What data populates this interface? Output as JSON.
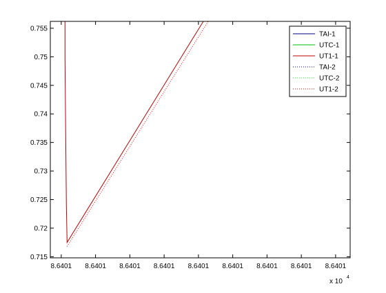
{
  "chart_data": {
    "type": "line",
    "title": "",
    "xlabel": "",
    "ylabel": "",
    "x_exponent_label": "x 10",
    "x_exponent_power": "4",
    "xlim": [
      0,
      1
    ],
    "ylim": [
      0.7148,
      0.7562
    ],
    "x_tick_positions": [
      0.0364,
      0.1508,
      0.2652,
      0.3796,
      0.494,
      0.6084,
      0.7227,
      0.8371,
      0.9515
    ],
    "x_tick_labels": [
      "8.6401",
      "8.6401",
      "8.6401",
      "8.6401",
      "8.6401",
      "8.6401",
      "8.6401",
      "8.6401",
      "8.6401"
    ],
    "y_ticks": [
      0.715,
      0.72,
      0.725,
      0.73,
      0.735,
      0.74,
      0.745,
      0.75,
      0.755
    ],
    "y_tick_labels": [
      "0.715",
      "0.72",
      "0.725",
      "0.73",
      "0.735",
      "0.74",
      "0.745",
      "0.75",
      "0.755"
    ],
    "grid": false,
    "legend_position": "top-right",
    "series": [
      {
        "name": "TAI-1",
        "color": "#00007f",
        "style": "solid",
        "x": [
          0.0489,
          0.0489
        ],
        "y": [
          0.7562,
          0.7562
        ]
      },
      {
        "name": "UTC-1",
        "color": "#00bf00",
        "style": "solid",
        "x": [
          0.0489,
          0.0489
        ],
        "y": [
          0.7562,
          0.7562
        ]
      },
      {
        "name": "UT1-1",
        "color": "#bf0000",
        "style": "solid",
        "x": [
          0.0489,
          0.0489,
          0.0489,
          0.0512,
          0.0512,
          0.0536,
          0.0536,
          0.0559,
          0.5103
        ],
        "y": [
          0.7562,
          0.7498,
          0.7498,
          0.737,
          0.737,
          0.7238,
          0.7238,
          0.7175,
          0.7562
        ]
      },
      {
        "name": "TAI-2",
        "color": "#0000ff",
        "style": "dotted",
        "x": [
          0.0559,
          0.0559
        ],
        "y": [
          0.7168,
          0.7168
        ]
      },
      {
        "name": "UTC-2",
        "color": "#00ff00",
        "style": "dotted",
        "x": [
          0.0559,
          0.0559
        ],
        "y": [
          0.7168,
          0.7168
        ]
      },
      {
        "name": "UT1-2",
        "color": "#ff0000",
        "style": "dotted",
        "x": [
          0.0559,
          0.5266
        ],
        "y": [
          0.7168,
          0.7562
        ]
      }
    ]
  }
}
